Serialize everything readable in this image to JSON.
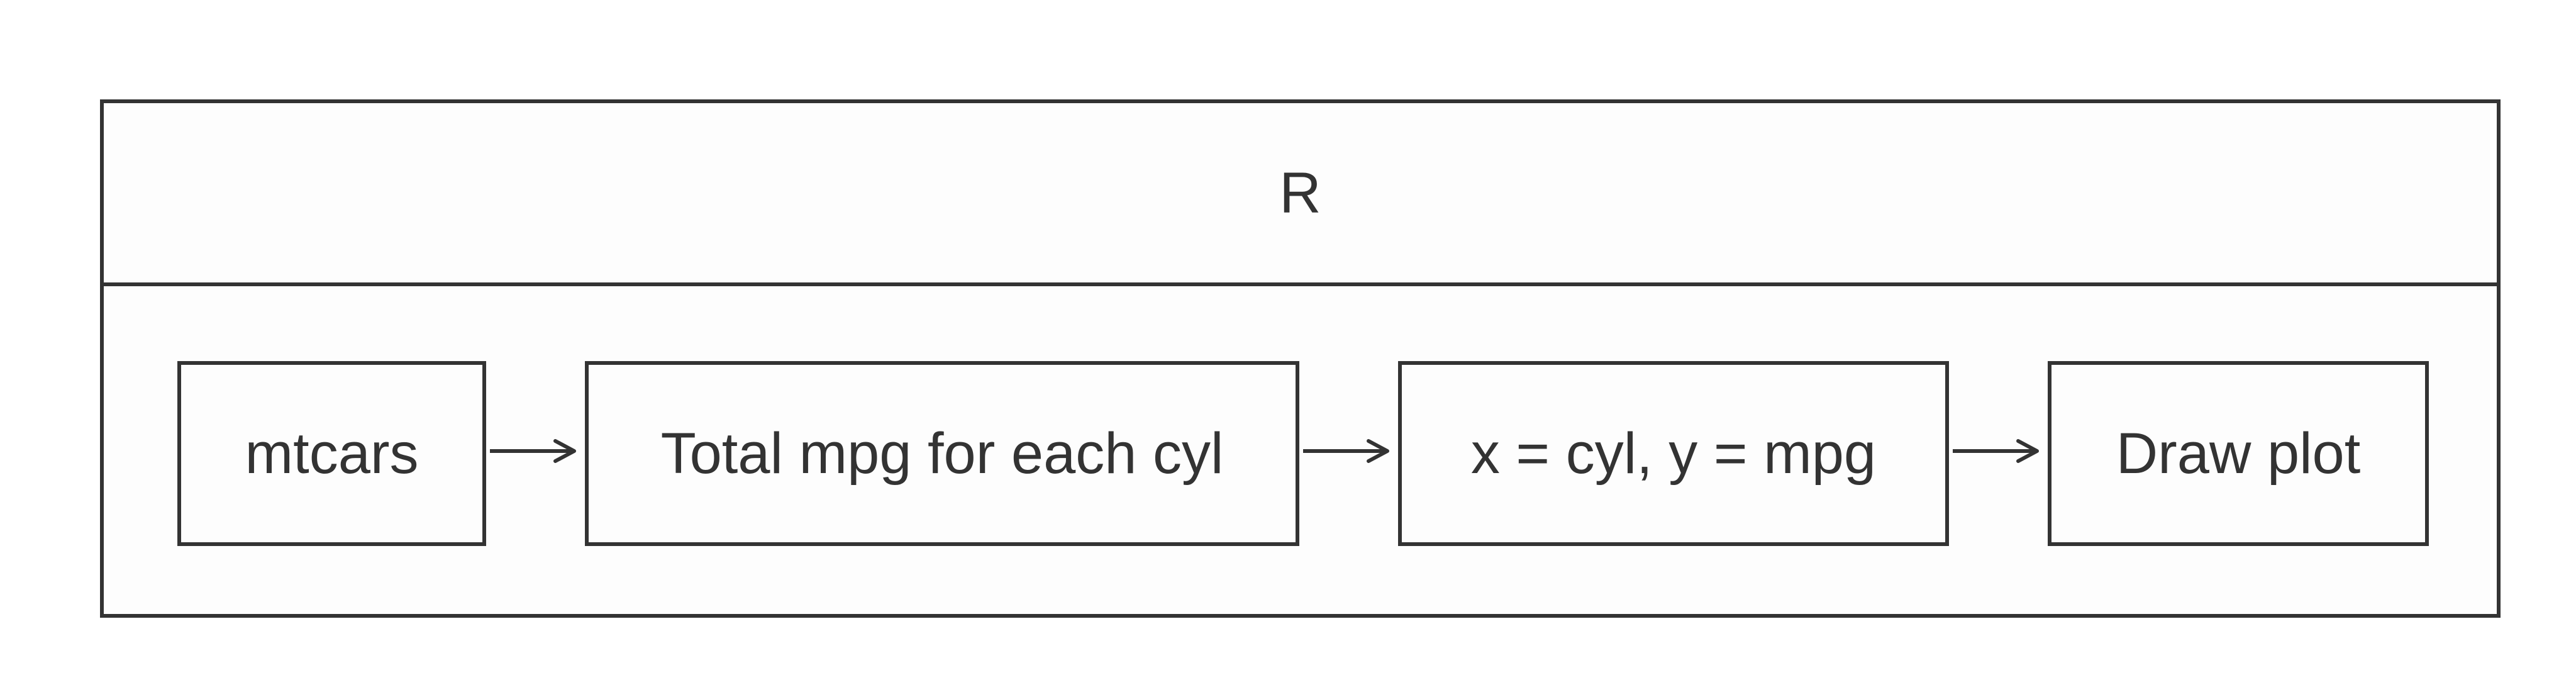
{
  "diagram": {
    "container_label": "R",
    "nodes": [
      {
        "id": "mtcars",
        "label": "mtcars"
      },
      {
        "id": "total-mpg",
        "label": "Total mpg for each cyl"
      },
      {
        "id": "mapping",
        "label": "x = cyl, y = mpg"
      },
      {
        "id": "draw-plot",
        "label": "Draw plot"
      }
    ],
    "edges": [
      {
        "from": "mtcars",
        "to": "total-mpg"
      },
      {
        "from": "total-mpg",
        "to": "mapping"
      },
      {
        "from": "mapping",
        "to": "draw-plot"
      }
    ],
    "colors": {
      "stroke": "#333333",
      "fill": "#fdfdfd",
      "text": "#333333"
    }
  }
}
